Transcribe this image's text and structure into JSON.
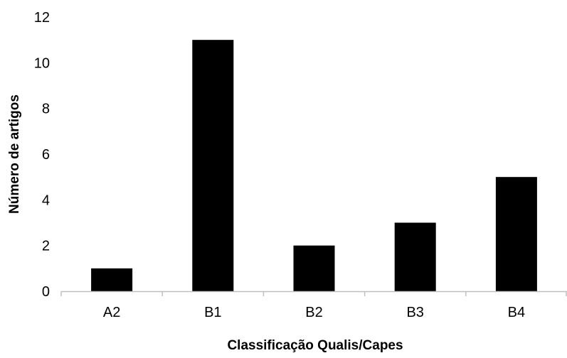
{
  "chart_data": {
    "type": "bar",
    "title": "",
    "xlabel": "Classificação Qualis/Capes",
    "ylabel": "Número de artigos",
    "categories": [
      "A2",
      "B1",
      "B2",
      "B3",
      "B4"
    ],
    "values": [
      1,
      11,
      2,
      3,
      5
    ],
    "ylim": [
      0,
      12
    ],
    "yticks": [
      0,
      2,
      4,
      6,
      8,
      10,
      12
    ],
    "grid": false,
    "legend": "none",
    "bar_color": "#000000",
    "axis_color": "#bfbfbf"
  }
}
